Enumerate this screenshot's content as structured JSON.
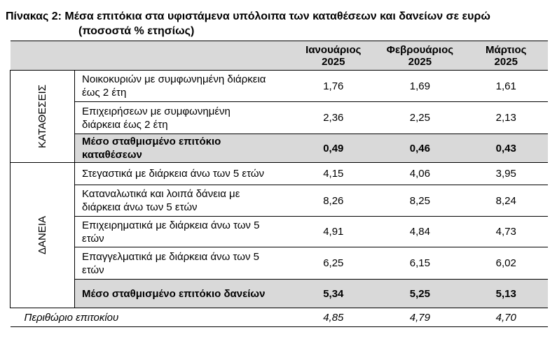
{
  "title": "Πίνακας 2: Μέσα επιτόκια στα υφιστάμενα υπόλοιπα των καταθέσεων και δανείων σε ευρώ",
  "subtitle": "(ποσοστά % ετησίως)",
  "columns": [
    {
      "month": "Ιανουάριος",
      "year": "2025"
    },
    {
      "month": "Φεβρουάριος",
      "year": "2025"
    },
    {
      "month": "Μάρτιος",
      "year": "2025"
    }
  ],
  "deposits": {
    "group_label": "ΚΑΤΑΘΕΣΕΙΣ",
    "rows": [
      {
        "label1": "Νοικοκυριών με συμφωνημένη διάρκεια",
        "label2": "έως 2 έτη",
        "values": [
          "1,76",
          "1,69",
          "1,61"
        ]
      },
      {
        "label1": "Επιχειρήσεων με συμφωνημένη",
        "label2": "διάρκεια έως 2 έτη",
        "values": [
          "2,36",
          "2,25",
          "2,13"
        ]
      }
    ],
    "average": {
      "label1": "Μέσο σταθμισμένο επιτόκιο",
      "label2": "καταθέσεων",
      "values": [
        "0,49",
        "0,46",
        "0,43"
      ]
    }
  },
  "loans": {
    "group_label": "ΔΑΝΕΙΑ",
    "rows": [
      {
        "label1": "Στεγαστικά με διάρκεια άνω των 5 ετών",
        "label2": "",
        "values": [
          "4,15",
          "4,06",
          "3,95"
        ]
      },
      {
        "label1": "Καταναλωτικά και λοιπά δάνεια με",
        "label2": "διάρκεια άνω των 5 ετών",
        "values": [
          "8,26",
          "8,25",
          "8,24"
        ]
      },
      {
        "label1": "Επιχειρηματικά με διάρκεια άνω των 5",
        "label2": "ετών",
        "values": [
          "4,91",
          "4,84",
          "4,73"
        ]
      },
      {
        "label1": "Επαγγελματικά με διάρκεια άνω των 5",
        "label2": "ετών",
        "values": [
          "6,25",
          "6,15",
          "6,02"
        ]
      }
    ],
    "average": {
      "label1": "Μέσο σταθμισμένο επιτόκιο δανείων",
      "label2": "",
      "values": [
        "5,34",
        "5,25",
        "5,13"
      ]
    }
  },
  "margin": {
    "label": "Περιθώριο επιτοκίου",
    "values": [
      "4,85",
      "4,79",
      "4,70"
    ]
  }
}
